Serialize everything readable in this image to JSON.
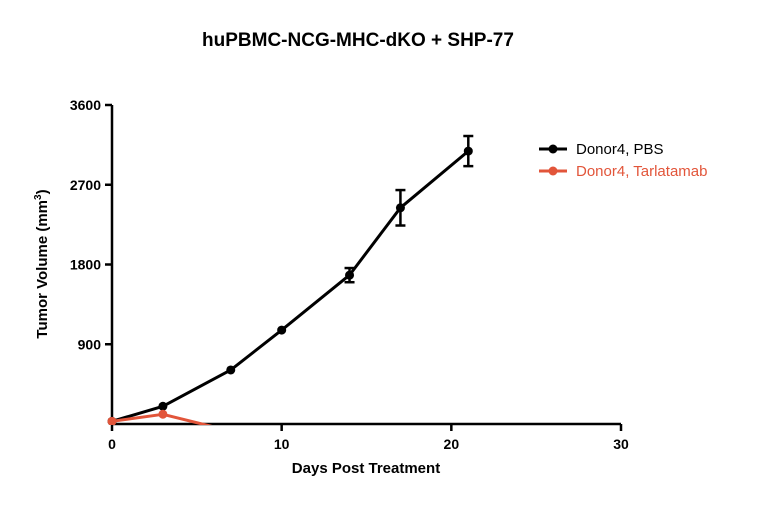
{
  "chart_data": {
    "type": "line",
    "title": "huPBMC-NCG-MHC-dKO + SHP-77",
    "xlabel": "Days Post Treatment",
    "ylabel": "Tumor Volume (mm",
    "ylabel_superscript": "3",
    "ylabel_close": ")",
    "xlim": [
      0,
      30
    ],
    "ylim": [
      0,
      3600
    ],
    "x_ticks": [
      "0",
      "10",
      "20",
      "30"
    ],
    "y_ticks": [
      "900",
      "1800",
      "2700",
      "3600"
    ],
    "grid": false,
    "legend_position": "top-right",
    "series": [
      {
        "name": "Donor4, PBS",
        "color": "#000000",
        "points": [
          {
            "x": 0,
            "y": 30
          },
          {
            "x": 3,
            "y": 200
          },
          {
            "x": 7,
            "y": 610
          },
          {
            "x": 10,
            "y": 1060
          },
          {
            "x": 14,
            "y": 1680,
            "err": 80
          },
          {
            "x": 17,
            "y": 2440,
            "err": 200
          },
          {
            "x": 21,
            "y": 3080,
            "err": 170
          }
        ]
      },
      {
        "name": "Donor4, Tarlatamab",
        "color": "#e2553a",
        "points": [
          {
            "x": 0,
            "y": 30
          },
          {
            "x": 3,
            "y": 110
          },
          {
            "x": 7,
            "y": -80
          }
        ]
      }
    ]
  }
}
